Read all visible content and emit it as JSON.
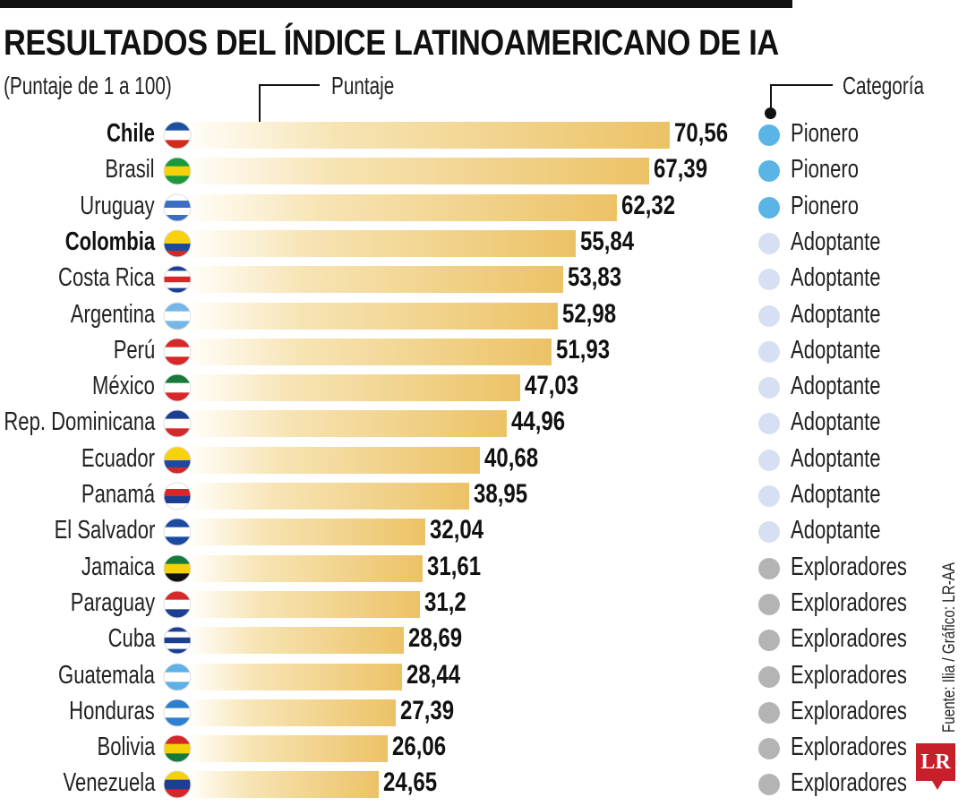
{
  "title": "RESULTADOS DEL ÍNDICE LATINOAMERICANO DE IA",
  "subtitle": "(Puntaje de 1 a 100)",
  "legend": {
    "score_label": "Puntaje",
    "category_label": "Categoría"
  },
  "source": "Fuente: Ilia / Gráfico: LR-AA",
  "logo": "LR",
  "category_colors": {
    "Pionero": "#5ab4e6",
    "Adoptante": "#d6e0f2",
    "Exploradores": "#b4b4b4"
  },
  "chart_data": {
    "type": "bar",
    "orientation": "horizontal",
    "title": "RESULTADOS DEL ÍNDICE LATINOAMERICANO DE IA",
    "subtitle": "(Puntaje de 1 a 100)",
    "xlabel": "Puntaje",
    "xlim": [
      0,
      100
    ],
    "categories": [
      "Chile",
      "Brasil",
      "Uruguay",
      "Colombia",
      "Costa Rica",
      "Argentina",
      "Perú",
      "México",
      "Rep. Dominicana",
      "Ecuador",
      "Panamá",
      "El Salvador",
      "Jamaica",
      "Paraguay",
      "Cuba",
      "Guatemala",
      "Honduras",
      "Bolivia",
      "Venezuela"
    ],
    "values": [
      70.56,
      67.39,
      62.32,
      55.84,
      53.83,
      52.98,
      51.93,
      47.03,
      44.96,
      40.68,
      38.95,
      32.04,
      31.61,
      31.2,
      28.69,
      28.44,
      27.39,
      26.06,
      24.65
    ],
    "value_labels": [
      "70,56",
      "67,39",
      "62,32",
      "55,84",
      "53,83",
      "52,98",
      "51,93",
      "47,03",
      "44,96",
      "40,68",
      "38,95",
      "32,04",
      "31,61",
      "31,2",
      "28,69",
      "28,44",
      "27,39",
      "26,06",
      "24,65"
    ],
    "category_group": [
      "Pionero",
      "Pionero",
      "Pionero",
      "Adoptante",
      "Adoptante",
      "Adoptante",
      "Adoptante",
      "Adoptante",
      "Adoptante",
      "Adoptante",
      "Adoptante",
      "Adoptante",
      "Exploradores",
      "Exploradores",
      "Exploradores",
      "Exploradores",
      "Exploradores",
      "Exploradores",
      "Exploradores"
    ],
    "bold": [
      "Chile",
      "Colombia"
    ]
  },
  "flags": {
    "Chile": [
      "#1d4fa0",
      "#ffffff",
      "#d52b1e"
    ],
    "Brasil": [
      "#1a9a3c",
      "#f5d10a",
      "#1a9a3c"
    ],
    "Uruguay": [
      "#ffffff",
      "#3b6fc4",
      "#ffffff",
      "#3b6fc4"
    ],
    "Colombia": [
      "#f8d20f",
      "#f8d20f",
      "#1b4ba0",
      "#d62828"
    ],
    "Costa Rica": [
      "#1b3f93",
      "#ffffff",
      "#d62828",
      "#ffffff",
      "#1b3f93"
    ],
    "Argentina": [
      "#74b7e8",
      "#ffffff",
      "#74b7e8"
    ],
    "Perú": [
      "#d62828",
      "#ffffff",
      "#d62828"
    ],
    "México": [
      "#157a3a",
      "#ffffff",
      "#d62828"
    ],
    "Rep. Dominicana": [
      "#1b3f93",
      "#ffffff",
      "#d62828"
    ],
    "Ecuador": [
      "#f8d20f",
      "#f8d20f",
      "#1b4ba0",
      "#d62828"
    ],
    "Panamá": [
      "#ffffff",
      "#d62828",
      "#1b3f93",
      "#ffffff"
    ],
    "El Salvador": [
      "#1b4ba0",
      "#ffffff",
      "#1b4ba0"
    ],
    "Jamaica": [
      "#157a3a",
      "#f5d10a",
      "#111111"
    ],
    "Paraguay": [
      "#d62828",
      "#ffffff",
      "#1b3f93"
    ],
    "Cuba": [
      "#1b3f93",
      "#ffffff",
      "#1b3f93",
      "#ffffff",
      "#1b3f93"
    ],
    "Guatemala": [
      "#5fb0e6",
      "#ffffff",
      "#5fb0e6"
    ],
    "Honduras": [
      "#2d7fd0",
      "#ffffff",
      "#2d7fd0"
    ],
    "Bolivia": [
      "#d62828",
      "#f5d10a",
      "#157a3a"
    ],
    "Venezuela": [
      "#f5d10a",
      "#1b3f93",
      "#d62828"
    ]
  }
}
